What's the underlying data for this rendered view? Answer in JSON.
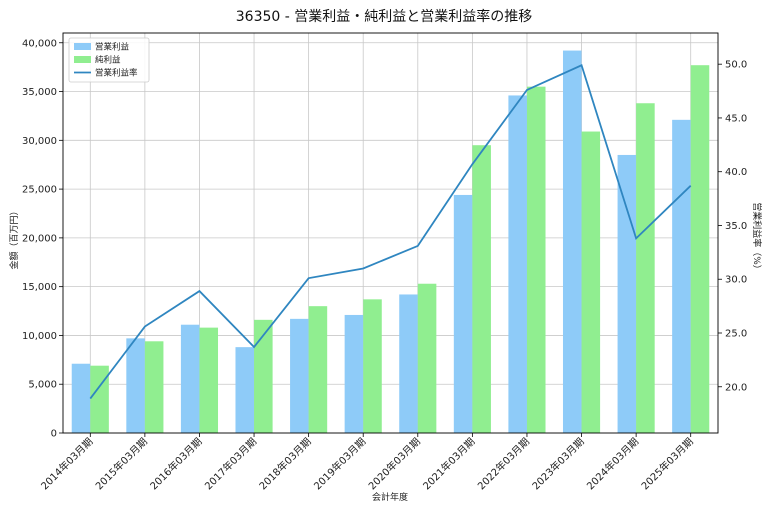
{
  "chart_data": {
    "type": "bar",
    "title": "36350 - 営業利益・純利益と営業利益率の推移",
    "xlabel": "会計年度",
    "ylabel": "金額（百万円）",
    "ylabel_right": "営業利益率（%）",
    "categories": [
      "2014年03月期",
      "2015年03月期",
      "2016年03月期",
      "2017年03月期",
      "2018年03月期",
      "2019年03月期",
      "2020年03月期",
      "2021年03月期",
      "2022年03月期",
      "2023年03月期",
      "2024年03月期",
      "2025年03月期"
    ],
    "series": [
      {
        "name": "営業利益",
        "type": "bar",
        "axis": "left",
        "color": "#8ecbf8",
        "values": [
          7100,
          9700,
          11100,
          8800,
          11700,
          12100,
          14200,
          24400,
          34600,
          39200,
          28500,
          32100
        ]
      },
      {
        "name": "純利益",
        "type": "bar",
        "axis": "left",
        "color": "#90ee90",
        "values": [
          6900,
          9400,
          10800,
          11600,
          13000,
          13700,
          15300,
          29500,
          35500,
          30900,
          33800,
          37700
        ]
      },
      {
        "name": "営業利益率",
        "type": "line",
        "axis": "right",
        "color": "#2f86c0",
        "values": [
          18.9,
          25.6,
          28.9,
          23.7,
          30.1,
          31.0,
          33.1,
          40.7,
          47.6,
          49.9,
          33.8,
          38.7
        ]
      }
    ],
    "ylim": [
      0,
      41000
    ],
    "yticks": [
      0,
      5000,
      10000,
      15000,
      20000,
      25000,
      30000,
      35000,
      40000
    ],
    "ytick_labels": [
      "0",
      "5,000",
      "10,000",
      "15,000",
      "20,000",
      "25,000",
      "30,000",
      "35,000",
      "40,000"
    ],
    "ylim_right": [
      15.7,
      52.9
    ],
    "yticks_right": [
      20.0,
      25.0,
      30.0,
      35.0,
      40.0,
      45.0,
      50.0
    ],
    "ytick_labels_right": [
      "20.0",
      "25.0",
      "30.0",
      "35.0",
      "40.0",
      "45.0",
      "50.0"
    ],
    "grid": true,
    "legend_position": "top-left"
  }
}
